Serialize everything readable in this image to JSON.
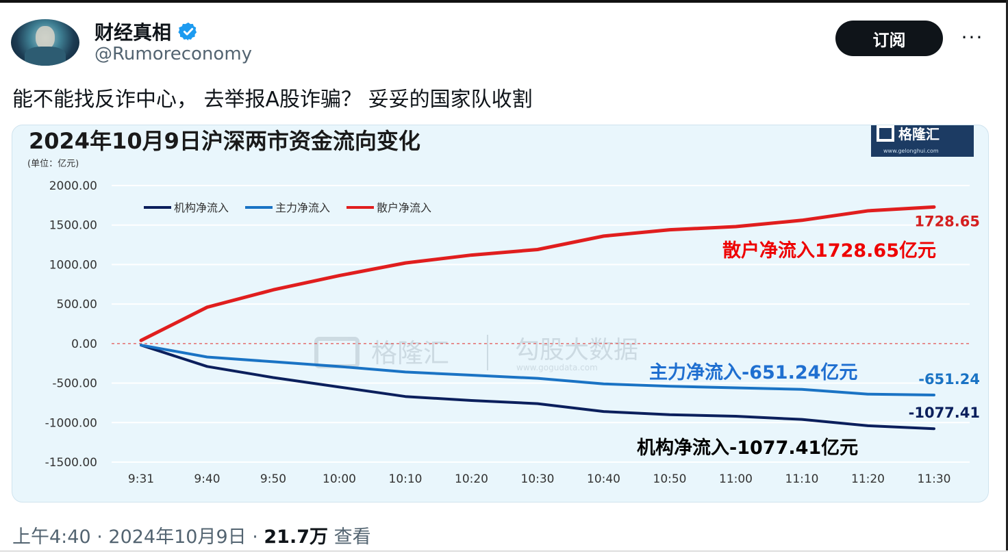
{
  "account": {
    "display_name": "财经真相",
    "handle": "@Rumoreconomy"
  },
  "actions": {
    "subscribe_label": "订阅",
    "more_label": "···"
  },
  "tweet": {
    "text": "能不能找反诈中心，  去举报A股诈骗？  妥妥的国家队收割"
  },
  "meta": {
    "time": "上午4:40",
    "sep1": " · ",
    "date": "2024年10月9日",
    "sep2": " · ",
    "views": "21.7万",
    "views_label": " 查看"
  },
  "chart_data": {
    "type": "line",
    "title": "2024年10月9日沪深两市资金流向变化",
    "unit_label": "(单位：亿元)",
    "logo_text": "格隆汇",
    "logo_url": "www.gelonghui.com",
    "watermark_left": "格隆汇",
    "watermark_right": "勾股大数据",
    "watermark_url": "www.gogudata.com",
    "x": [
      "9:31",
      "9:40",
      "9:50",
      "10:00",
      "10:10",
      "10:20",
      "10:30",
      "10:40",
      "10:50",
      "11:00",
      "11:10",
      "11:20",
      "11:30"
    ],
    "ylim": [
      -1500,
      2000
    ],
    "y_ticks": [
      "2000.00",
      "1500.00",
      "1000.00",
      "500.00",
      "0.00",
      "-500.00",
      "-1000.00",
      "-1500.00"
    ],
    "legend_position": "top-left",
    "series": [
      {
        "name": "机构净流入",
        "color": "#0b1f5c",
        "values": [
          -20,
          -290,
          -430,
          -550,
          -670,
          -720,
          -760,
          -860,
          -900,
          -920,
          -960,
          -1040,
          -1077.41
        ],
        "end_label": "-1077.41",
        "annotation": "机构净流入-1077.41亿元"
      },
      {
        "name": "主力净流入",
        "color": "#1a73c4",
        "values": [
          -20,
          -170,
          -230,
          -290,
          -360,
          -400,
          -440,
          -510,
          -540,
          -560,
          -580,
          -640,
          -651.24
        ],
        "end_label": "-651.24",
        "annotation": "主力净流入-651.24亿元"
      },
      {
        "name": "散户净流入",
        "color": "#e01e1e",
        "values": [
          40,
          460,
          680,
          860,
          1020,
          1120,
          1190,
          1360,
          1440,
          1480,
          1560,
          1680,
          1728.65
        ],
        "end_label": "1728.65",
        "annotation": "散户净流入1728.65亿元"
      }
    ]
  }
}
